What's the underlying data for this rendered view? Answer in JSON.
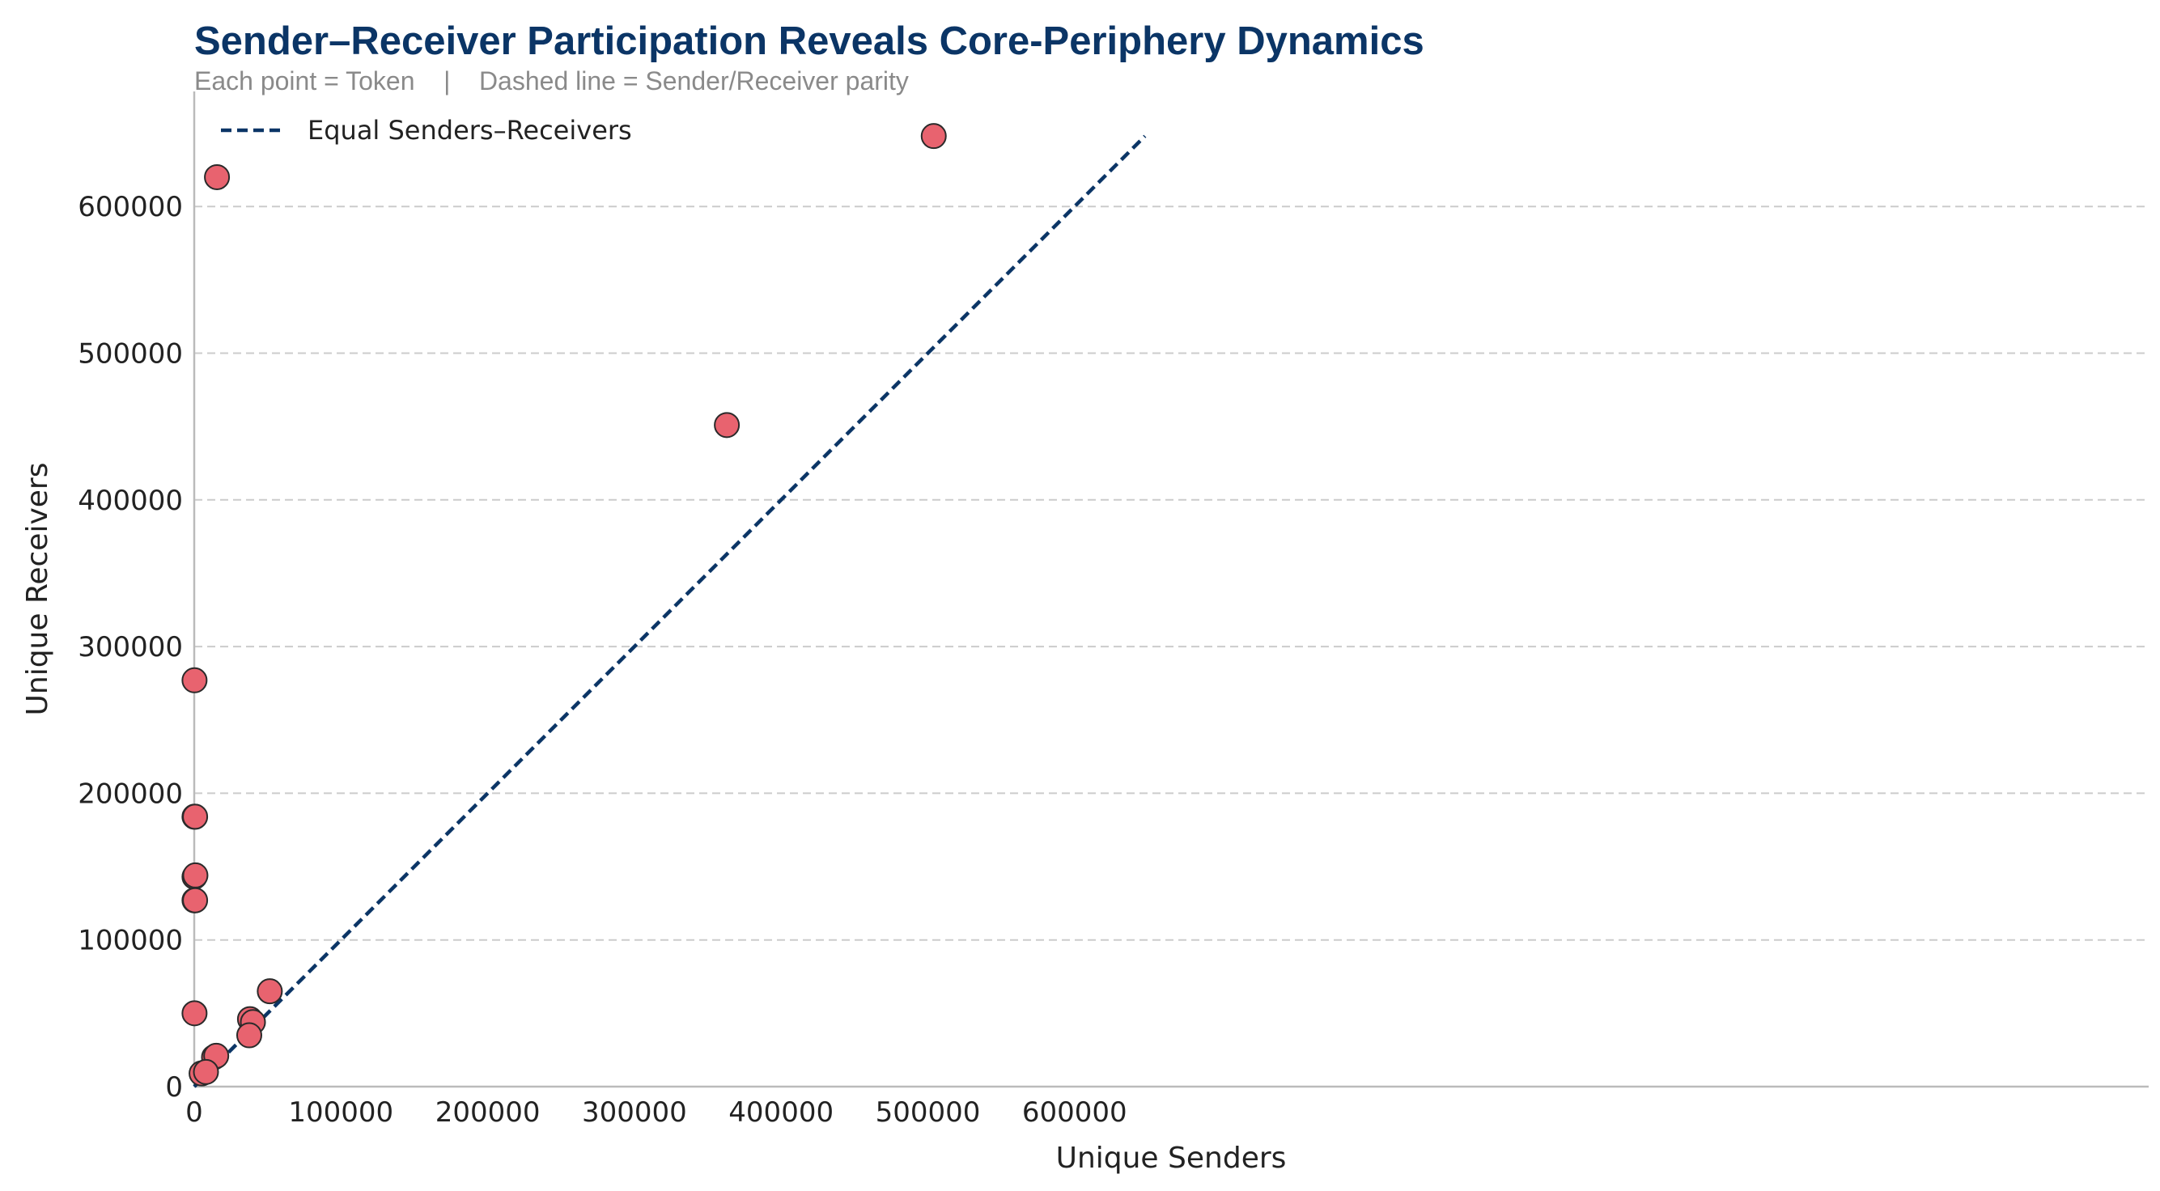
{
  "chart_data": {
    "type": "scatter",
    "title": "Sender–Receiver Participation Reveals Core-Periphery Dynamics",
    "subtitle": "Each point = Token    |    Dashed line = Sender/Receiver parity",
    "xlabel": "Unique Senders",
    "ylabel": "Unique Receivers",
    "xlim": [
      0,
      680000
    ],
    "ylim": [
      0,
      680000
    ],
    "x_ticks": [
      0,
      100000,
      200000,
      300000,
      400000,
      500000,
      600000
    ],
    "y_ticks": [
      0,
      100000,
      200000,
      300000,
      400000,
      500000,
      600000
    ],
    "x_tick_labels": [
      "0",
      "100000",
      "200000",
      "300000",
      "400000",
      "500000",
      "600000"
    ],
    "y_tick_labels": [
      "0",
      "100000",
      "200000",
      "300000",
      "400000",
      "500000",
      "600000"
    ],
    "grid": "horizontal-dashed",
    "legend_position": "top-left",
    "legend_label": "Equal Senders–Receivers",
    "parity_line": {
      "x": [
        0,
        648000
      ],
      "y": [
        0,
        648000
      ]
    },
    "colors": {
      "point_fill": "#e8636f",
      "point_edge": "#2a2a2a",
      "line": "#0b3566",
      "grid": "#cccccc",
      "axis": "#bbbbbb"
    },
    "points": [
      {
        "x": 504000,
        "y": 648000
      },
      {
        "x": 15500,
        "y": 620000
      },
      {
        "x": 363000,
        "y": 451000
      },
      {
        "x": 200,
        "y": 277000
      },
      {
        "x": 200,
        "y": 184000
      },
      {
        "x": 600,
        "y": 184000
      },
      {
        "x": 200,
        "y": 143000
      },
      {
        "x": 800,
        "y": 144000
      },
      {
        "x": 200,
        "y": 127000
      },
      {
        "x": 600,
        "y": 127000
      },
      {
        "x": 200,
        "y": 50000
      },
      {
        "x": 51500,
        "y": 65000
      },
      {
        "x": 38000,
        "y": 46000
      },
      {
        "x": 40000,
        "y": 44000
      },
      {
        "x": 37500,
        "y": 35000
      },
      {
        "x": 13500,
        "y": 20000
      },
      {
        "x": 15000,
        "y": 21000
      },
      {
        "x": 5000,
        "y": 9000
      },
      {
        "x": 8000,
        "y": 10000
      }
    ]
  }
}
